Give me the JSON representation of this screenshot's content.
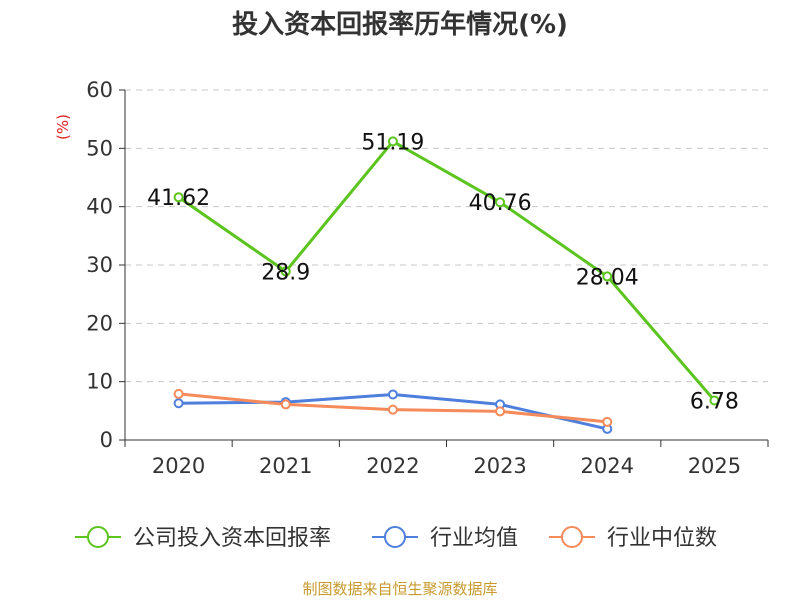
{
  "chart_data": {
    "type": "line",
    "title": "投入资本回报率历年情况(%)",
    "ylabel": "(%)",
    "xlabel": "",
    "categories": [
      "2020",
      "2021",
      "2022",
      "2023",
      "2024",
      "2025"
    ],
    "ylim": [
      0,
      60
    ],
    "yticks": [
      0,
      10,
      20,
      30,
      40,
      50,
      60
    ],
    "grid": true,
    "legend_position": "bottom",
    "series": [
      {
        "name": "公司投入资本回报率",
        "color": "#5cc41e",
        "values": [
          41.62,
          28.9,
          51.19,
          40.76,
          28.04,
          6.78
        ],
        "labels": [
          "41.62",
          "28.9",
          "51.19",
          "40.76",
          "28.04",
          "6.78"
        ]
      },
      {
        "name": "行业均值",
        "color": "#4f7fdc",
        "values": [
          6.3,
          6.5,
          7.8,
          6.1,
          1.9,
          null
        ]
      },
      {
        "name": "行业中位数",
        "color": "#f58a5a",
        "values": [
          7.9,
          6.1,
          5.2,
          4.9,
          3.1,
          null
        ]
      }
    ]
  },
  "source": "制图数据来自恒生聚源数据库",
  "colors": {
    "unit_label": "#e02020",
    "source_text": "#c89a2e",
    "axis": "#333333",
    "grid": "#c8c8c8"
  }
}
